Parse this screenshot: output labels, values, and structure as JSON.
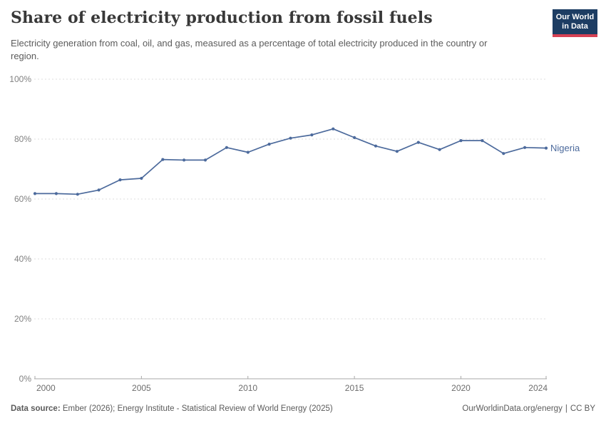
{
  "header": {
    "title": "Share of electricity production from fossil fuels",
    "subtitle": "Electricity generation from coal, oil, and gas, measured as a percentage of total electricity produced in the country or region."
  },
  "logo": {
    "line1": "Our World",
    "line2": "in Data",
    "bg_color": "#1d3d63",
    "accent_color": "#d64154"
  },
  "chart_data": {
    "type": "line",
    "title": "Share of electricity production from fossil fuels",
    "xlabel": "",
    "ylabel": "",
    "x": [
      2000,
      2001,
      2002,
      2003,
      2004,
      2005,
      2006,
      2007,
      2008,
      2009,
      2010,
      2011,
      2012,
      2013,
      2014,
      2015,
      2016,
      2017,
      2018,
      2019,
      2020,
      2021,
      2022,
      2023,
      2024
    ],
    "series": [
      {
        "name": "Nigeria",
        "color": "#4c6a9c",
        "values": [
          61.8,
          61.8,
          61.6,
          63.0,
          66.4,
          66.9,
          73.2,
          73.0,
          73.0,
          77.2,
          75.6,
          78.3,
          80.3,
          81.4,
          83.4,
          80.5,
          77.7,
          75.9,
          78.9,
          76.5,
          79.5,
          79.5,
          75.2,
          77.2,
          77.0
        ]
      }
    ],
    "xticks": [
      2000,
      2005,
      2010,
      2015,
      2020,
      2024
    ],
    "yticks": [
      0,
      20,
      40,
      60,
      80,
      100
    ],
    "ytick_suffix": "%",
    "ylim": [
      0,
      100
    ],
    "grid": "horizontal-dashed",
    "legend_position": "end-of-line-label"
  },
  "footer": {
    "datasource_label": "Data source:",
    "datasource_text": "Ember (2026); Energy Institute - Statistical Review of World Energy (2025)",
    "url": "OurWorldinData.org/energy",
    "separator": "|",
    "license": "CC BY"
  }
}
